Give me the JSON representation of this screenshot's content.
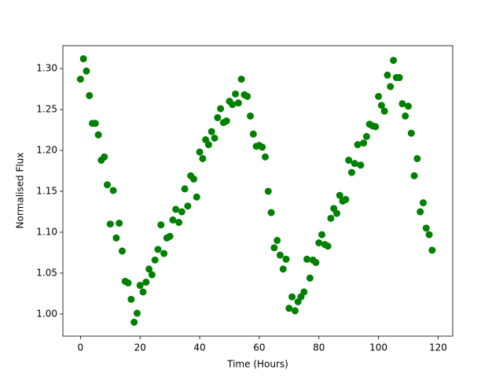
{
  "chart_data": {
    "type": "scatter",
    "xlabel": "Time (Hours)",
    "ylabel": "Normalised Flux",
    "color": "green",
    "grid": false,
    "x": [
      0,
      1,
      2,
      3,
      4,
      5,
      6,
      7,
      8,
      9,
      10,
      11,
      12,
      13,
      14,
      15,
      16,
      17,
      18,
      19,
      20,
      21,
      22,
      23,
      24,
      25,
      26,
      27,
      28,
      29,
      30,
      31,
      32,
      33,
      34,
      35,
      36,
      37,
      38,
      39,
      40,
      41,
      42,
      43,
      44,
      45,
      46,
      47,
      48,
      49,
      50,
      51,
      52,
      53,
      54,
      55,
      56,
      57,
      58,
      59,
      60,
      61,
      62,
      63,
      64,
      65,
      66,
      67,
      68,
      69,
      70,
      71,
      72,
      73,
      74,
      75,
      76,
      77,
      78,
      79,
      80,
      81,
      82,
      83,
      84,
      85,
      86,
      87,
      88,
      89,
      90,
      91,
      92,
      93,
      94,
      95,
      96,
      97,
      98,
      99,
      100,
      101,
      102,
      103,
      104,
      105,
      106,
      107,
      108,
      109,
      110,
      111,
      112,
      113,
      114,
      115,
      116,
      117,
      118
    ],
    "values": [
      1.287,
      1.312,
      1.297,
      1.267,
      1.233,
      1.233,
      1.219,
      1.188,
      1.192,
      1.158,
      1.11,
      1.151,
      1.093,
      1.111,
      1.077,
      1.04,
      1.038,
      1.018,
      0.99,
      1.001,
      1.035,
      1.027,
      1.039,
      1.055,
      1.048,
      1.066,
      1.079,
      1.109,
      1.074,
      1.093,
      1.095,
      1.115,
      1.128,
      1.112,
      1.125,
      1.153,
      1.132,
      1.169,
      1.165,
      1.143,
      1.198,
      1.19,
      1.213,
      1.207,
      1.223,
      1.215,
      1.24,
      1.251,
      1.234,
      1.236,
      1.26,
      1.256,
      1.269,
      1.258,
      1.287,
      1.268,
      1.266,
      1.242,
      1.22,
      1.205,
      1.206,
      1.204,
      1.192,
      1.15,
      1.124,
      1.081,
      1.09,
      1.072,
      1.055,
      1.067,
      1.007,
      1.021,
      1.004,
      1.015,
      1.021,
      1.027,
      1.067,
      1.044,
      1.066,
      1.063,
      1.087,
      1.097,
      1.085,
      1.083,
      1.117,
      1.129,
      1.123,
      1.145,
      1.138,
      1.14,
      1.188,
      1.173,
      1.184,
      1.207,
      1.182,
      1.209,
      1.217,
      1.232,
      1.23,
      1.229,
      1.266,
      1.255,
      1.248,
      1.292,
      1.278,
      1.31,
      1.289,
      1.289,
      1.257,
      1.242,
      1.254,
      1.221,
      1.169,
      1.19,
      1.125,
      1.136,
      1.105,
      1.097,
      1.078
    ],
    "xlim": [
      -5.9,
      124.9
    ],
    "ylim": [
      0.973,
      1.328
    ],
    "xticks": [
      0,
      20,
      40,
      60,
      80,
      100,
      120
    ],
    "yticks": [
      {
        "value": 1.0,
        "label": "1.00"
      },
      1.05,
      {
        "value": 1.1,
        "label": "1.10"
      },
      1.15,
      {
        "value": 1.2,
        "label": "1.20"
      },
      1.25,
      {
        "value": 1.3,
        "label": "1.30"
      }
    ]
  }
}
